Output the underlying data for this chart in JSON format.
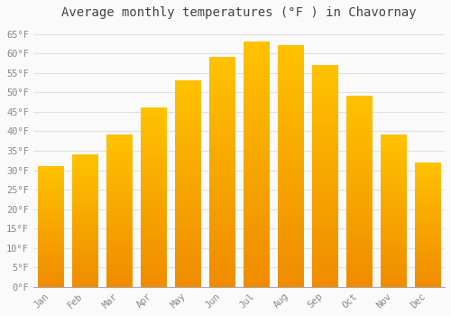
{
  "title": "Average monthly temperatures (°F ) in Chavornay",
  "months": [
    "Jan",
    "Feb",
    "Mar",
    "Apr",
    "May",
    "Jun",
    "Jul",
    "Aug",
    "Sep",
    "Oct",
    "Nov",
    "Dec"
  ],
  "values": [
    31,
    34,
    39,
    46,
    53,
    59,
    63,
    62,
    57,
    49,
    39,
    32
  ],
  "bar_color_top": "#FFC200",
  "bar_color_bottom": "#F08C00",
  "ylim": [
    0,
    67
  ],
  "yticks": [
    0,
    5,
    10,
    15,
    20,
    25,
    30,
    35,
    40,
    45,
    50,
    55,
    60,
    65
  ],
  "ytick_labels": [
    "0°F",
    "5°F",
    "10°F",
    "15°F",
    "20°F",
    "25°F",
    "30°F",
    "35°F",
    "40°F",
    "45°F",
    "50°F",
    "55°F",
    "60°F",
    "65°F"
  ],
  "title_fontsize": 10,
  "tick_fontsize": 7.5,
  "background_color": "#FAFAFA",
  "grid_color": "#E0E0E0",
  "font_family": "monospace",
  "bar_width": 0.75
}
